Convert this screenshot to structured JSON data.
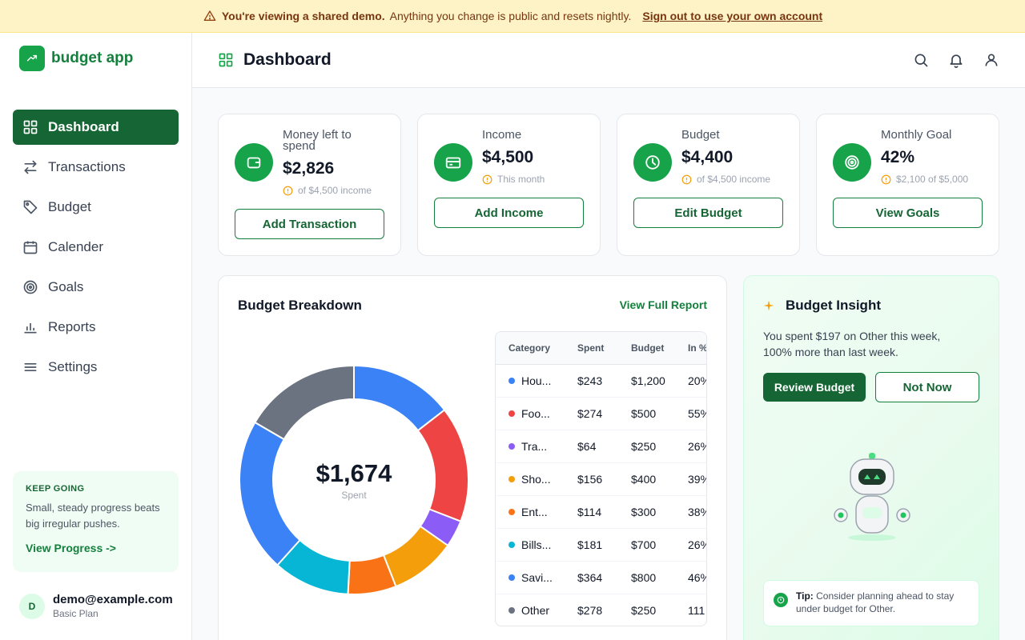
{
  "banner": {
    "bold": "You're viewing a shared demo.",
    "text": "Anything you change is public and resets nightly.",
    "link": "Sign out to use your own account"
  },
  "brand": {
    "name": "budget app"
  },
  "sidebar": {
    "items": [
      {
        "label": "Dashboard",
        "icon": "grid-icon",
        "active": true
      },
      {
        "label": "Transactions",
        "icon": "arrows-icon"
      },
      {
        "label": "Budget",
        "icon": "tag-icon"
      },
      {
        "label": "Calender",
        "icon": "calendar-icon"
      },
      {
        "label": "Goals",
        "icon": "target-icon"
      },
      {
        "label": "Reports",
        "icon": "bar-chart-icon"
      },
      {
        "label": "Settings",
        "icon": "sliders-icon"
      }
    ],
    "promo": {
      "title": "KEEP GOING",
      "text": "Small, steady progress beats big irregular pushes.",
      "link": "View Progress ->"
    },
    "user": {
      "initial": "D",
      "email": "demo@example.com",
      "plan": "Basic Plan"
    }
  },
  "header": {
    "title": "Dashboard"
  },
  "stats": [
    {
      "label": "Money left to spend",
      "value": "$2,826",
      "sub": "of $4,500 income",
      "button": "Add Transaction",
      "icon": "wallet-icon"
    },
    {
      "label": "Income",
      "value": "$4,500",
      "sub": "This month",
      "button": "Add Income",
      "icon": "card-icon"
    },
    {
      "label": "Budget",
      "value": "$4,400",
      "sub": "of $4,500 income",
      "button": "Edit Budget",
      "icon": "clock-icon"
    },
    {
      "label": "Monthly Goal",
      "value": "42%",
      "sub": "$2,100 of $5,000",
      "button": "View Goals",
      "icon": "target-icon"
    }
  ],
  "breakdown": {
    "title": "Budget Breakdown",
    "link": "View Full Report",
    "total": "$1,674",
    "total_label": "Spent",
    "columns": [
      "Category",
      "Spent",
      "Budget",
      "In %"
    ],
    "rows": [
      {
        "category": "Hou...",
        "spent": "$243",
        "budget": "$1,200",
        "pct": "20%",
        "color": "#3b82f6"
      },
      {
        "category": "Foo...",
        "spent": "$274",
        "budget": "$500",
        "pct": "55%",
        "color": "#ef4444"
      },
      {
        "category": "Tra...",
        "spent": "$64",
        "budget": "$250",
        "pct": "26%",
        "color": "#8b5cf6"
      },
      {
        "category": "Sho...",
        "spent": "$156",
        "budget": "$400",
        "pct": "39%",
        "color": "#f59e0b"
      },
      {
        "category": "Ent...",
        "spent": "$114",
        "budget": "$300",
        "pct": "38%",
        "color": "#f97316"
      },
      {
        "category": "Bills...",
        "spent": "$181",
        "budget": "$700",
        "pct": "26%",
        "color": "#06b6d4"
      },
      {
        "category": "Savi...",
        "spent": "$364",
        "budget": "$800",
        "pct": "46%",
        "color": "#3b82f6"
      },
      {
        "category": "Other",
        "spent": "$278",
        "budget": "$250",
        "pct": "111",
        "color": "#6b7280"
      }
    ]
  },
  "chart_data": {
    "type": "pie",
    "categories": [
      "Hou...",
      "Foo...",
      "Tra...",
      "Sho...",
      "Ent...",
      "Bills...",
      "Savi...",
      "Other"
    ],
    "values": [
      243,
      274,
      64,
      156,
      114,
      181,
      364,
      278
    ],
    "colors": [
      "#3b82f6",
      "#ef4444",
      "#8b5cf6",
      "#f59e0b",
      "#f97316",
      "#06b6d4",
      "#3b82f6",
      "#6b7280"
    ]
  },
  "insight": {
    "title": "Budget Insight",
    "text": "You spent $197 on Other this week, 100% more than last week.",
    "primary": "Review Budget",
    "secondary": "Not Now",
    "tip_label": "Tip:",
    "tip_text": "Consider planning ahead to stay under budget for Other."
  },
  "colors": {
    "brand": "#16a34a",
    "brand_dark": "#166534",
    "banner": "#fef3c7"
  }
}
